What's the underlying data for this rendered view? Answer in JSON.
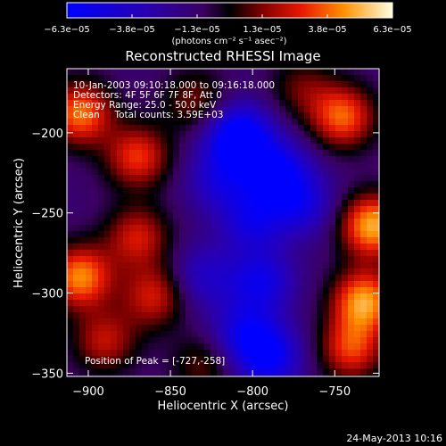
{
  "chart_data": {
    "type": "heatmap",
    "title": "Reconstructed RHESSI Image",
    "xlabel": "Heliocentric X (arcsec)",
    "ylabel": "Heliocentric Y (arcsec)",
    "xlim": [
      -913,
      -723
    ],
    "ylim": [
      -352,
      -160
    ],
    "xticks": [
      -900,
      -850,
      -800,
      -750
    ],
    "yticks": [
      -350,
      -300,
      -250,
      -200
    ],
    "colorbar": {
      "min": -6.3e-05,
      "max": 6.3e-05,
      "tick_labels": [
        "−6.3e−05",
        "−3.8e−05",
        "−1.3e−05",
        "1.3e−05",
        "3.8e−05",
        "6.3e−05"
      ],
      "unit_label": "(photons cm⁻² s⁻¹ asec⁻²)"
    },
    "annotations": [
      "10-Jan-2003 09:10:18.000 to 09:16:18.000",
      "Detectors: 4F 5F 6F 7F 8F, Att 0",
      "Energy Range: 25.0 - 50.0 keV",
      "Clean     Total counts: 3.59E+03"
    ],
    "peak_text": "Position of Peak = [-727,-258]",
    "peak_position": [
      -727,
      -258
    ],
    "sources": [
      {
        "x": -727,
        "y": -258,
        "v": 1.0
      },
      {
        "x": -732,
        "y": -305,
        "v": 0.95
      },
      {
        "x": -745,
        "y": -190,
        "v": 0.8
      },
      {
        "x": -740,
        "y": -335,
        "v": 0.7
      },
      {
        "x": -905,
        "y": -188,
        "v": 0.85
      },
      {
        "x": -870,
        "y": -215,
        "v": 0.7
      },
      {
        "x": -905,
        "y": -290,
        "v": 0.9
      },
      {
        "x": -890,
        "y": -330,
        "v": 0.55
      },
      {
        "x": -870,
        "y": -265,
        "v": 0.6
      },
      {
        "x": -860,
        "y": -302,
        "v": 0.6
      },
      {
        "x": -835,
        "y": -180,
        "v": 0.4
      },
      {
        "x": -830,
        "y": -345,
        "v": 0.35
      },
      {
        "x": -770,
        "y": -172,
        "v": 0.35
      },
      {
        "x": -808,
        "y": -203,
        "v": -1.0
      },
      {
        "x": -785,
        "y": -225,
        "v": -0.75
      },
      {
        "x": -800,
        "y": -255,
        "v": -0.55
      },
      {
        "x": -770,
        "y": -245,
        "v": -0.5
      },
      {
        "x": -795,
        "y": -293,
        "v": -0.6
      },
      {
        "x": -805,
        "y": -325,
        "v": -0.55
      },
      {
        "x": -790,
        "y": -340,
        "v": -0.7
      },
      {
        "x": -830,
        "y": -290,
        "v": -0.4
      },
      {
        "x": -820,
        "y": -230,
        "v": -0.45
      }
    ]
  },
  "footer_date": "24-May-2013 10:16"
}
